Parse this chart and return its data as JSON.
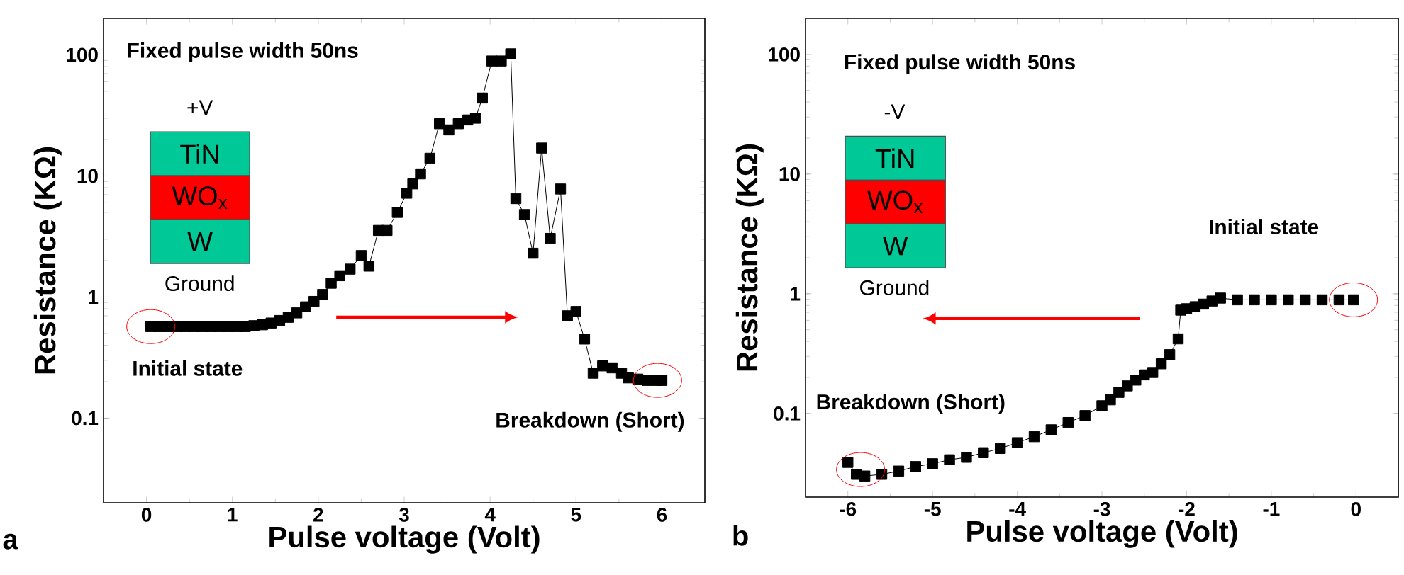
{
  "chart_data": [
    {
      "type": "line",
      "xlabel": "Pulse voltage (Volt)",
      "ylabel": "Resistance (KΩ)",
      "log": "y",
      "marker": "square",
      "line_style": "solid",
      "xlim": [
        -0.5,
        6.5
      ],
      "ylim": [
        0.02,
        200
      ],
      "xticks": [
        0,
        1,
        2,
        3,
        4,
        5,
        6
      ],
      "yticks": [
        0.1,
        1,
        10,
        100
      ],
      "series": [
        {
          "color": "#000000",
          "x": [
            0.05,
            0.15,
            0.25,
            0.35,
            0.45,
            0.55,
            0.65,
            0.75,
            0.85,
            0.95,
            1.05,
            1.15,
            1.25,
            1.35,
            1.45,
            1.55,
            1.65,
            1.75,
            1.85,
            1.95,
            2.05,
            2.15,
            2.25,
            2.37,
            2.5,
            2.59,
            2.7,
            2.8,
            2.92,
            3.03,
            3.1,
            3.19,
            3.3,
            3.41,
            3.52,
            3.63,
            3.74,
            3.83,
            3.91,
            4.02,
            4.13,
            4.24,
            4.3,
            4.4,
            4.5,
            4.6,
            4.7,
            4.82,
            4.9,
            5.0,
            5.1,
            5.2,
            5.31,
            5.42,
            5.53,
            5.61,
            5.72,
            5.83,
            5.94,
            6.0
          ],
          "values": [
            0.57,
            0.57,
            0.57,
            0.57,
            0.57,
            0.57,
            0.57,
            0.57,
            0.57,
            0.57,
            0.57,
            0.57,
            0.58,
            0.59,
            0.61,
            0.64,
            0.68,
            0.74,
            0.83,
            0.92,
            1.05,
            1.3,
            1.5,
            1.7,
            2.2,
            1.8,
            3.55,
            3.55,
            5.0,
            7.2,
            8.6,
            10.4,
            14,
            27,
            24,
            27,
            29,
            30,
            44,
            89,
            89,
            102,
            6.5,
            4.8,
            2.3,
            17,
            3.05,
            7.8,
            0.7,
            0.76,
            0.45,
            0.235,
            0.27,
            0.26,
            0.235,
            0.215,
            0.21,
            0.205,
            0.205,
            0.205
          ]
        }
      ],
      "annotations": [
        "Fixed pulse width 50ns",
        "+V",
        "TiN",
        "WO$_{x}$",
        "W",
        "Ground",
        "Initial state",
        "Breakdown (Short)",
        "a"
      ]
    },
    {
      "type": "line",
      "xlabel": "Pulse voltage (Volt)",
      "ylabel": "Resistance (KΩ)",
      "log": "y",
      "marker": "square",
      "line_style": "solid",
      "xlim": [
        -6.5,
        0.5
      ],
      "ylim": [
        0.02,
        200
      ],
      "xticks": [
        -6,
        -5,
        -4,
        -3,
        -2,
        -1,
        0
      ],
      "yticks": [
        0.1,
        1,
        10,
        100
      ],
      "series": [
        {
          "color": "#000000",
          "x": [
            -6.0,
            -5.9,
            -5.8,
            -5.6,
            -5.4,
            -5.2,
            -5.0,
            -4.8,
            -4.6,
            -4.4,
            -4.2,
            -4.0,
            -3.8,
            -3.6,
            -3.4,
            -3.2,
            -3.0,
            -2.9,
            -2.8,
            -2.7,
            -2.6,
            -2.5,
            -2.4,
            -2.3,
            -2.2,
            -2.1,
            -2.07,
            -2.0,
            -1.9,
            -1.8,
            -1.7,
            -1.6,
            -1.4,
            -1.2,
            -1.0,
            -0.8,
            -0.6,
            -0.4,
            -0.2,
            -0.03
          ],
          "values": [
            0.039,
            0.031,
            0.03,
            0.031,
            0.033,
            0.036,
            0.038,
            0.041,
            0.043,
            0.047,
            0.051,
            0.057,
            0.064,
            0.073,
            0.084,
            0.096,
            0.116,
            0.13,
            0.15,
            0.17,
            0.19,
            0.21,
            0.22,
            0.26,
            0.31,
            0.42,
            0.73,
            0.75,
            0.78,
            0.82,
            0.87,
            0.92,
            0.89,
            0.89,
            0.89,
            0.89,
            0.89,
            0.89,
            0.89,
            0.89
          ]
        }
      ],
      "annotations": [
        "Fixed pulse width 50ns",
        "-V",
        "TiN",
        "WO$_{x}$",
        "W",
        "Ground",
        "Initial state",
        "Breakdown (Short)",
        "b"
      ]
    }
  ]
}
